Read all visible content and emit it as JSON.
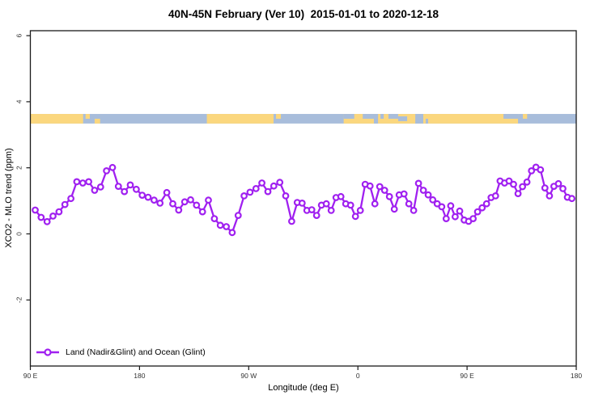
{
  "title": "40N-45N February (Ver 10)  2015-01-01 to 2020-12-18",
  "legend": {
    "label": "Land (Nadir&Glint) and Ocean (Glint)"
  },
  "colors": {
    "series": "#A020F0",
    "marker_fill": "#ffffff",
    "land": "#FBD77E",
    "ocean": "#A8BDDB",
    "axis": "#1a1a1a",
    "tick_text": "#333333"
  },
  "chart_data": {
    "type": "line",
    "title": "40N-45N February (Ver 10)  2015-01-01 to 2020-12-18",
    "xlabel": "Longitude (deg E)",
    "ylabel": "XCO2 - MLO trend (ppm)",
    "grid": false,
    "legend_position": "bottom-left-inside",
    "x_axis": {
      "min": 90,
      "max": 540,
      "ticks": [
        {
          "pos": 90,
          "label": "90 E"
        },
        {
          "pos": 180,
          "label": "180"
        },
        {
          "pos": 270,
          "label": "90 W"
        },
        {
          "pos": 360,
          "label": "0"
        },
        {
          "pos": 450,
          "label": "90 E"
        },
        {
          "pos": 540,
          "label": "180"
        }
      ],
      "note": "longitude wraps eastward from 90E, 1.25 times around the globe"
    },
    "y_axis": {
      "min": -4.0,
      "max": 6.15,
      "ticks": [
        -2,
        0,
        2,
        4,
        6
      ]
    },
    "map_strip": {
      "value_top": 3.63,
      "value_bottom": 3.34,
      "base": "ocean",
      "land_segments": [
        {
          "from": 90,
          "to": 133.5,
          "band": "full"
        },
        {
          "from": 135.5,
          "to": 139,
          "band": "top"
        },
        {
          "from": 143,
          "to": 147.5,
          "band": "bottom"
        },
        {
          "from": 235.5,
          "to": 290.5,
          "band": "full"
        },
        {
          "from": 292.5,
          "to": 296.5,
          "band": "top"
        },
        {
          "from": 348.3,
          "to": 492,
          "band": "full"
        },
        {
          "from": 496,
          "to": 499.5,
          "band": "top"
        }
      ],
      "ocean_holes": [
        {
          "from": 348.3,
          "to": 357,
          "band": "top"
        },
        {
          "from": 364,
          "to": 373.2,
          "band": "top"
        },
        {
          "from": 373.2,
          "to": 376.6,
          "band": "full"
        },
        {
          "from": 378.6,
          "to": 381.3,
          "band": "top"
        },
        {
          "from": 385.2,
          "to": 393.2,
          "band": "top"
        },
        {
          "from": 393.2,
          "to": 400.6,
          "band": "middle"
        },
        {
          "from": 407.3,
          "to": 413.9,
          "band": "full"
        },
        {
          "from": 415.9,
          "to": 417.9,
          "band": "bottom"
        },
        {
          "from": 480,
          "to": 492,
          "band": "top"
        }
      ]
    },
    "series": [
      {
        "name": "Land (Nadir&Glint) and Ocean (Glint)",
        "color": "#A020F0",
        "marker": "open-circle",
        "points": [
          [
            94,
            0.72
          ],
          [
            98.9,
            0.5
          ],
          [
            103.8,
            0.37
          ],
          [
            108.7,
            0.54
          ],
          [
            113.6,
            0.67
          ],
          [
            118.5,
            0.89
          ],
          [
            123.4,
            1.07
          ],
          [
            128.3,
            1.58
          ],
          [
            133.2,
            1.54
          ],
          [
            138.1,
            1.58
          ],
          [
            143,
            1.32
          ],
          [
            147.9,
            1.42
          ],
          [
            152.8,
            1.91
          ],
          [
            157.7,
            2.01
          ],
          [
            162.6,
            1.44
          ],
          [
            167.5,
            1.28
          ],
          [
            172.4,
            1.48
          ],
          [
            177.3,
            1.35
          ],
          [
            182.2,
            1.17
          ],
          [
            187.1,
            1.11
          ],
          [
            192,
            1.02
          ],
          [
            196.9,
            0.93
          ],
          [
            202.5,
            1.25
          ],
          [
            207.4,
            0.91
          ],
          [
            212.3,
            0.72
          ],
          [
            217.2,
            0.97
          ],
          [
            222.1,
            1.03
          ],
          [
            227,
            0.87
          ],
          [
            231.9,
            0.67
          ],
          [
            236.8,
            1.02
          ],
          [
            241.7,
            0.46
          ],
          [
            246.6,
            0.26
          ],
          [
            251.5,
            0.22
          ],
          [
            256.4,
            0.04
          ],
          [
            261.3,
            0.56
          ],
          [
            266.2,
            1.15
          ],
          [
            271.1,
            1.26
          ],
          [
            276,
            1.37
          ],
          [
            280.9,
            1.54
          ],
          [
            285.8,
            1.28
          ],
          [
            290.7,
            1.45
          ],
          [
            295.6,
            1.56
          ],
          [
            300.5,
            1.15
          ],
          [
            305.4,
            0.38
          ],
          [
            310,
            0.95
          ],
          [
            314,
            0.93
          ],
          [
            318,
            0.71
          ],
          [
            322,
            0.73
          ],
          [
            326,
            0.56
          ],
          [
            330,
            0.87
          ],
          [
            334,
            0.91
          ],
          [
            338,
            0.71
          ],
          [
            342,
            1.1
          ],
          [
            346,
            1.13
          ],
          [
            350,
            0.91
          ],
          [
            354,
            0.87
          ],
          [
            358,
            0.53
          ],
          [
            362,
            0.71
          ],
          [
            366,
            1.5
          ],
          [
            370,
            1.45
          ],
          [
            374,
            0.91
          ],
          [
            378,
            1.43
          ],
          [
            382,
            1.32
          ],
          [
            386,
            1.13
          ],
          [
            390,
            0.75
          ],
          [
            394,
            1.18
          ],
          [
            398,
            1.21
          ],
          [
            402,
            0.91
          ],
          [
            406,
            0.71
          ],
          [
            410,
            1.53
          ],
          [
            414,
            1.32
          ],
          [
            418,
            1.18
          ],
          [
            421.7,
            1.03
          ],
          [
            425.4,
            0.91
          ],
          [
            429.1,
            0.82
          ],
          [
            432.8,
            0.46
          ],
          [
            436.5,
            0.85
          ],
          [
            440.2,
            0.52
          ],
          [
            443.9,
            0.69
          ],
          [
            447.6,
            0.42
          ],
          [
            451.3,
            0.38
          ],
          [
            455,
            0.46
          ],
          [
            458.7,
            0.67
          ],
          [
            462.4,
            0.79
          ],
          [
            466.1,
            0.91
          ],
          [
            469.8,
            1.1
          ],
          [
            473.5,
            1.15
          ],
          [
            477.2,
            1.6
          ],
          [
            480.9,
            1.54
          ],
          [
            484.6,
            1.6
          ],
          [
            488.3,
            1.5
          ],
          [
            492,
            1.22
          ],
          [
            495.7,
            1.43
          ],
          [
            499.4,
            1.57
          ],
          [
            503.1,
            1.91
          ],
          [
            506.8,
            2.02
          ],
          [
            510.5,
            1.94
          ],
          [
            514.2,
            1.39
          ],
          [
            517.9,
            1.15
          ],
          [
            521.6,
            1.44
          ],
          [
            525.3,
            1.52
          ],
          [
            529,
            1.37
          ],
          [
            532.7,
            1.11
          ],
          [
            536.4,
            1.07
          ]
        ]
      }
    ]
  }
}
